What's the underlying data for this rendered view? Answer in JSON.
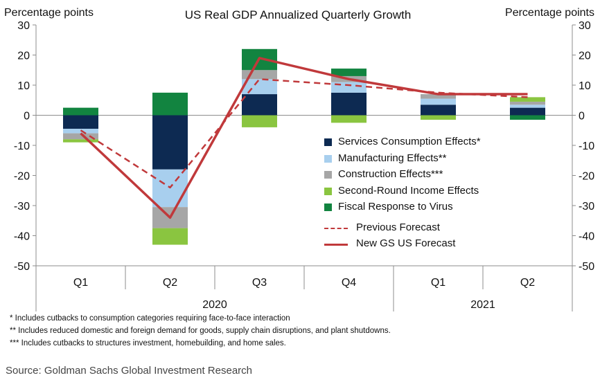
{
  "chart_data": {
    "type": "bar",
    "title": "US Real GDP Annualized Quarterly Growth",
    "ylabel_left": "Percentage points",
    "ylabel_right": "Percentage points",
    "ylim": [
      -50,
      30
    ],
    "yticks": [
      30,
      20,
      10,
      0,
      -10,
      -20,
      -30,
      -40,
      -50
    ],
    "categories": [
      "Q1",
      "Q2",
      "Q3",
      "Q4",
      "Q1",
      "Q2"
    ],
    "year_groups": [
      {
        "label": "2020",
        "span": 4
      },
      {
        "label": "2021",
        "span": 2
      }
    ],
    "series": [
      {
        "name": "Services Consumption Effects*",
        "kind": "bar",
        "color": "#0d2a52",
        "values": [
          -4.5,
          -18,
          7,
          7.5,
          3.5,
          2.5
        ]
      },
      {
        "name": "Manufacturing Effects**",
        "kind": "bar",
        "color": "#a8cfee",
        "values": [
          -1.5,
          -12.5,
          5,
          3.5,
          2,
          1
        ]
      },
      {
        "name": "Construction Effects***",
        "kind": "bar",
        "color": "#a6a6a6",
        "values": [
          -2,
          -7,
          3,
          2,
          1.5,
          1
        ]
      },
      {
        "name": "Second-Round Income Effects",
        "kind": "bar",
        "color": "#8ac540",
        "values": [
          -1,
          -5.5,
          -4,
          -2.5,
          -1.5,
          1.5
        ]
      },
      {
        "name": "Fiscal Response to Virus",
        "kind": "bar",
        "color": "#128440",
        "values": [
          2.5,
          7.5,
          7,
          2.5,
          0,
          -1.5
        ]
      },
      {
        "name": "Previous Forecast",
        "kind": "line",
        "color": "#c0393b",
        "dashed": true,
        "values": [
          -5,
          -24,
          12,
          10,
          7.5,
          6
        ]
      },
      {
        "name": "New GS US Forecast",
        "kind": "line",
        "color": "#c0393b",
        "dashed": false,
        "values": [
          -6,
          -34,
          19,
          12,
          7,
          7
        ]
      }
    ],
    "grid": false,
    "legend_position": "center-right"
  },
  "footnotes": [
    "* Includes  cutbacks to consumption  categories requiring  face-to-face interaction",
    "** Includes reduced domestic and foreign demand  for goods, supply chain disruptions,  and plant shutdowns.",
    "*** Includes  cutbacks to structures investment,  homebuilding,  and home sales."
  ],
  "source": "Source: Goldman Sachs Global Investment Research"
}
